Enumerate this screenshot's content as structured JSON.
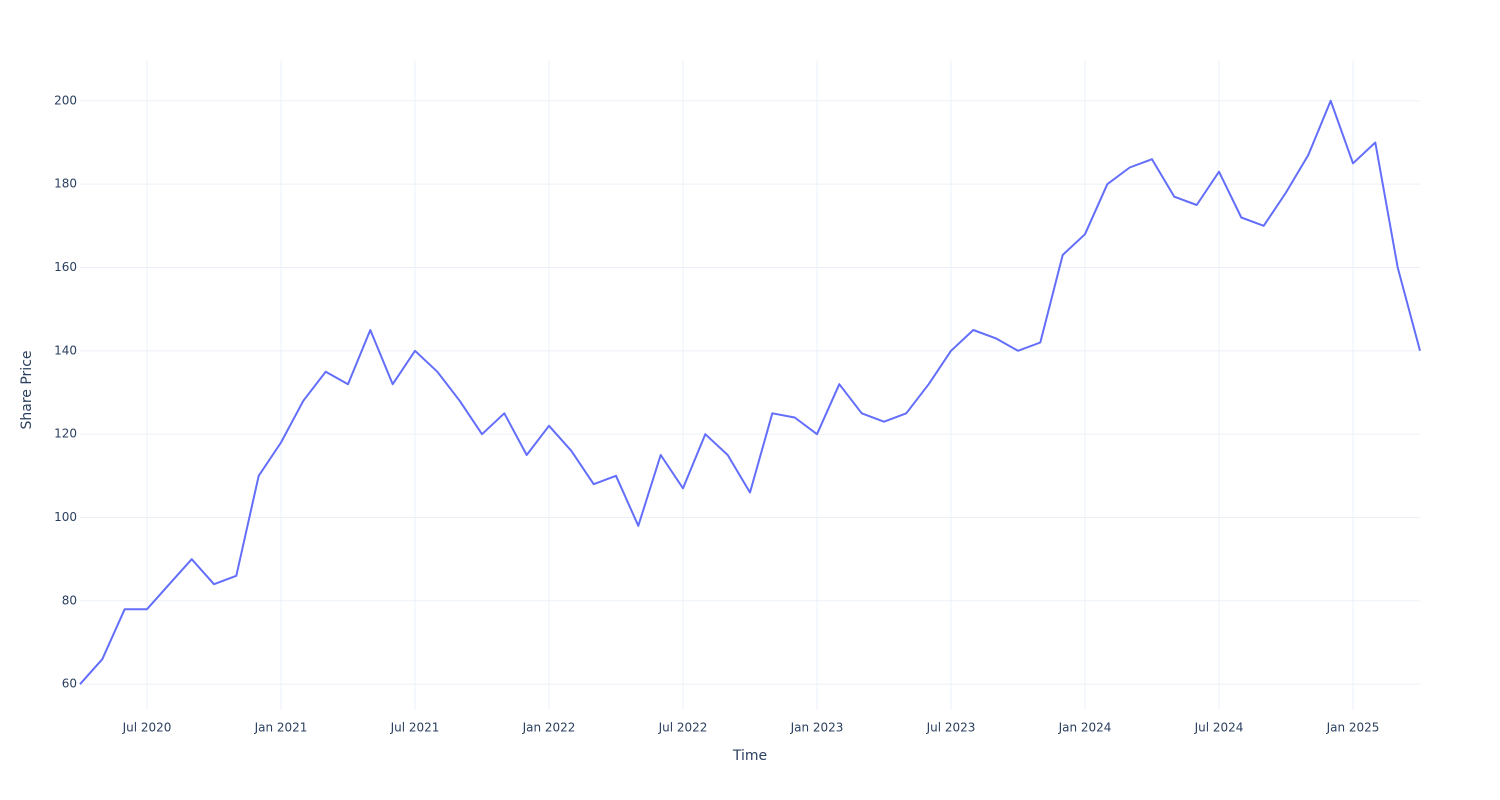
{
  "chart_data": {
    "type": "line",
    "xlabel": "Time",
    "ylabel": "Share Price",
    "x": [
      "2020-04",
      "2020-05",
      "2020-06",
      "2020-07",
      "2020-08",
      "2020-09",
      "2020-10",
      "2020-11",
      "2020-12",
      "2021-01",
      "2021-02",
      "2021-03",
      "2021-04",
      "2021-05",
      "2021-06",
      "2021-07",
      "2021-08",
      "2021-09",
      "2021-10",
      "2021-11",
      "2021-12",
      "2022-01",
      "2022-02",
      "2022-03",
      "2022-04",
      "2022-05",
      "2022-06",
      "2022-07",
      "2022-08",
      "2022-09",
      "2022-10",
      "2022-11",
      "2022-12",
      "2023-01",
      "2023-02",
      "2023-03",
      "2023-04",
      "2023-05",
      "2023-06",
      "2023-07",
      "2023-08",
      "2023-09",
      "2023-10",
      "2023-11",
      "2023-12",
      "2024-01",
      "2024-02",
      "2024-03",
      "2024-04",
      "2024-05",
      "2024-06",
      "2024-07",
      "2024-08",
      "2024-09",
      "2024-10",
      "2024-11",
      "2024-12",
      "2025-01",
      "2025-02",
      "2025-03",
      "2025-04"
    ],
    "values": [
      60,
      66,
      78,
      78,
      84,
      90,
      84,
      86,
      110,
      118,
      128,
      135,
      132,
      145,
      132,
      140,
      135,
      128,
      120,
      125,
      115,
      122,
      116,
      108,
      110,
      98,
      115,
      107,
      120,
      115,
      106,
      125,
      124,
      120,
      132,
      125,
      123,
      125,
      132,
      140,
      145,
      143,
      140,
      142,
      163,
      168,
      180,
      184,
      186,
      177,
      175,
      183,
      172,
      170,
      178,
      187,
      200,
      185,
      190,
      160,
      140
    ],
    "color": "#636efa",
    "xlim": [
      "2020-04",
      "2025-04"
    ],
    "xticks": [
      {
        "value": "2020-07",
        "label": "Jul 2020"
      },
      {
        "value": "2021-01",
        "label": "Jan 2021"
      },
      {
        "value": "2021-07",
        "label": "Jul 2021"
      },
      {
        "value": "2022-01",
        "label": "Jan 2022"
      },
      {
        "value": "2022-07",
        "label": "Jul 2022"
      },
      {
        "value": "2023-01",
        "label": "Jan 2023"
      },
      {
        "value": "2023-07",
        "label": "Jul 2023"
      },
      {
        "value": "2024-01",
        "label": "Jan 2024"
      },
      {
        "value": "2024-07",
        "label": "Jul 2024"
      },
      {
        "value": "2025-01",
        "label": "Jan 2025"
      }
    ],
    "ylim": [
      53.8,
      209.8
    ],
    "yticks": [
      60,
      80,
      100,
      120,
      140,
      160,
      180,
      200
    ],
    "grid": true
  }
}
